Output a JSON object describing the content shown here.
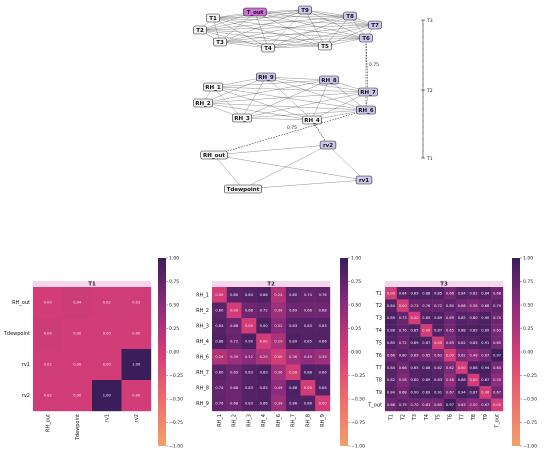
{
  "graph": {
    "nodes": [
      {
        "id": "T1",
        "fill": "#f4f4f4"
      },
      {
        "id": "T2",
        "fill": "#f4f4f4"
      },
      {
        "id": "T3",
        "fill": "#f4f4f4"
      },
      {
        "id": "T4",
        "fill": "#f4f4f4"
      },
      {
        "id": "T5",
        "fill": "#f4f4f4"
      },
      {
        "id": "T6",
        "fill": "#cfc6ee"
      },
      {
        "id": "T7",
        "fill": "#cfc6ee"
      },
      {
        "id": "T8",
        "fill": "#cfc6ee"
      },
      {
        "id": "T9",
        "fill": "#cfc6ee"
      },
      {
        "id": "T_out",
        "fill": "#d070d8"
      },
      {
        "id": "RH_1",
        "fill": "#f4f4f4"
      },
      {
        "id": "RH_2",
        "fill": "#f4f4f4"
      },
      {
        "id": "RH_3",
        "fill": "#f4f4f4"
      },
      {
        "id": "RH_4",
        "fill": "#f4f4f4"
      },
      {
        "id": "RH_6",
        "fill": "#cfc6ee"
      },
      {
        "id": "RH_7",
        "fill": "#cfc6ee"
      },
      {
        "id": "RH_8",
        "fill": "#cfc6ee"
      },
      {
        "id": "RH_9",
        "fill": "#cfc6ee"
      },
      {
        "id": "RH_out",
        "fill": "#f4f4f4"
      },
      {
        "id": "rv2",
        "fill": "#cfc6ee"
      },
      {
        "id": "rv1",
        "fill": "#cfc6ee"
      },
      {
        "id": "Tdewpoint",
        "fill": "#f4f4f4"
      }
    ],
    "edge_labels": [
      "0.75",
      "0.75"
    ],
    "level_axis": [
      "T3",
      "T2",
      "T1"
    ]
  },
  "heatmaps": [
    {
      "title": "T1",
      "rows": [
        "RH_out",
        "Tdewpoint",
        "rv1",
        "rv2"
      ],
      "cols": [
        "RH_out",
        "Tdewpoint",
        "rv1",
        "rv2"
      ],
      "values": [
        [
          0.0,
          0.04,
          0.02,
          0.02
        ],
        [
          0.04,
          0.0,
          -0.0,
          -0.0
        ],
        [
          0.02,
          -0.0,
          0.0,
          1.0
        ],
        [
          0.02,
          -0.0,
          1.0,
          0.0
        ]
      ],
      "colorbar": [
        "1.00",
        "0.75",
        "0.50",
        "0.25",
        "0.00",
        "−0.25",
        "−0.50",
        "−0.75",
        "−1.00"
      ]
    },
    {
      "title": "T2",
      "rows": [
        "RH_1",
        "RH_2",
        "RH_3",
        "RH_4",
        "RH_6",
        "RH_7",
        "RH_8",
        "RH_9"
      ],
      "cols": [
        "RH_1",
        "RH_2",
        "RH_3",
        "RH_4",
        "RH_6",
        "RH_7",
        "RH_8",
        "RH_9"
      ],
      "values": [
        [
          0.0,
          0.8,
          0.84,
          0.88,
          0.24,
          0.8,
          0.74,
          0.76
        ],
        [
          0.8,
          0.0,
          0.68,
          0.72,
          0.39,
          0.69,
          0.68,
          0.68
        ],
        [
          0.84,
          0.68,
          0.0,
          0.9,
          0.52,
          0.83,
          0.83,
          0.83
        ],
        [
          0.88,
          0.72,
          0.9,
          0.0,
          0.29,
          0.89,
          0.85,
          0.86
        ],
        [
          0.24,
          0.39,
          0.52,
          0.29,
          0.0,
          0.36,
          0.49,
          0.39
        ],
        [
          0.8,
          0.69,
          0.83,
          0.89,
          0.36,
          0.0,
          0.88,
          0.86
        ],
        [
          0.74,
          0.68,
          0.83,
          0.85,
          0.49,
          0.88,
          0.0,
          0.86
        ],
        [
          0.76,
          0.68,
          0.83,
          0.86,
          0.39,
          0.86,
          0.86,
          0.0
        ]
      ],
      "colorbar": [
        "1.00",
        "0.75",
        "0.50",
        "0.25",
        "0.00",
        "−0.25",
        "−0.50",
        "−0.75",
        "−1.00"
      ]
    },
    {
      "title": "T3",
      "rows": [
        "T1",
        "T2",
        "T3",
        "T4",
        "T5",
        "T6",
        "T7",
        "T8",
        "T9",
        "T_out"
      ],
      "cols": [
        "T1",
        "T2",
        "T3",
        "T4",
        "T5",
        "T6",
        "T7",
        "T8",
        "T9",
        "T_out"
      ],
      "values": [
        [
          0.0,
          0.84,
          0.89,
          0.88,
          0.85,
          0.66,
          0.84,
          0.82,
          0.84,
          0.68
        ],
        [
          0.84,
          0.0,
          0.73,
          0.76,
          0.72,
          0.8,
          0.66,
          0.58,
          0.68,
          0.79
        ],
        [
          0.89,
          0.73,
          0.0,
          0.85,
          0.89,
          0.69,
          0.85,
          0.8,
          0.9,
          0.7
        ],
        [
          0.88,
          0.76,
          0.85,
          0.0,
          0.87,
          0.65,
          0.88,
          0.89,
          0.89,
          0.63
        ],
        [
          0.85,
          0.72,
          0.89,
          0.87,
          0.0,
          0.63,
          0.82,
          0.83,
          0.91,
          0.65
        ],
        [
          0.66,
          0.8,
          0.69,
          0.65,
          0.63,
          0.0,
          0.62,
          0.48,
          0.67,
          0.97
        ],
        [
          0.84,
          0.66,
          0.85,
          0.88,
          0.82,
          0.62,
          0.0,
          0.88,
          0.94,
          0.63
        ],
        [
          0.82,
          0.58,
          0.8,
          0.89,
          0.83,
          0.48,
          0.88,
          0.0,
          0.87,
          0.5
        ],
        [
          0.84,
          0.68,
          0.9,
          0.89,
          0.91,
          0.67,
          0.94,
          0.87,
          0.0,
          0.67
        ],
        [
          0.68,
          0.79,
          0.7,
          0.63,
          0.65,
          0.97,
          0.63,
          0.5,
          0.67,
          0.0
        ]
      ],
      "colorbar": [
        "1.00",
        "0.75",
        "0.50",
        "0.25",
        "0.00",
        "−0.25",
        "−0.50",
        "−0.75",
        "−1.00"
      ]
    }
  ]
}
